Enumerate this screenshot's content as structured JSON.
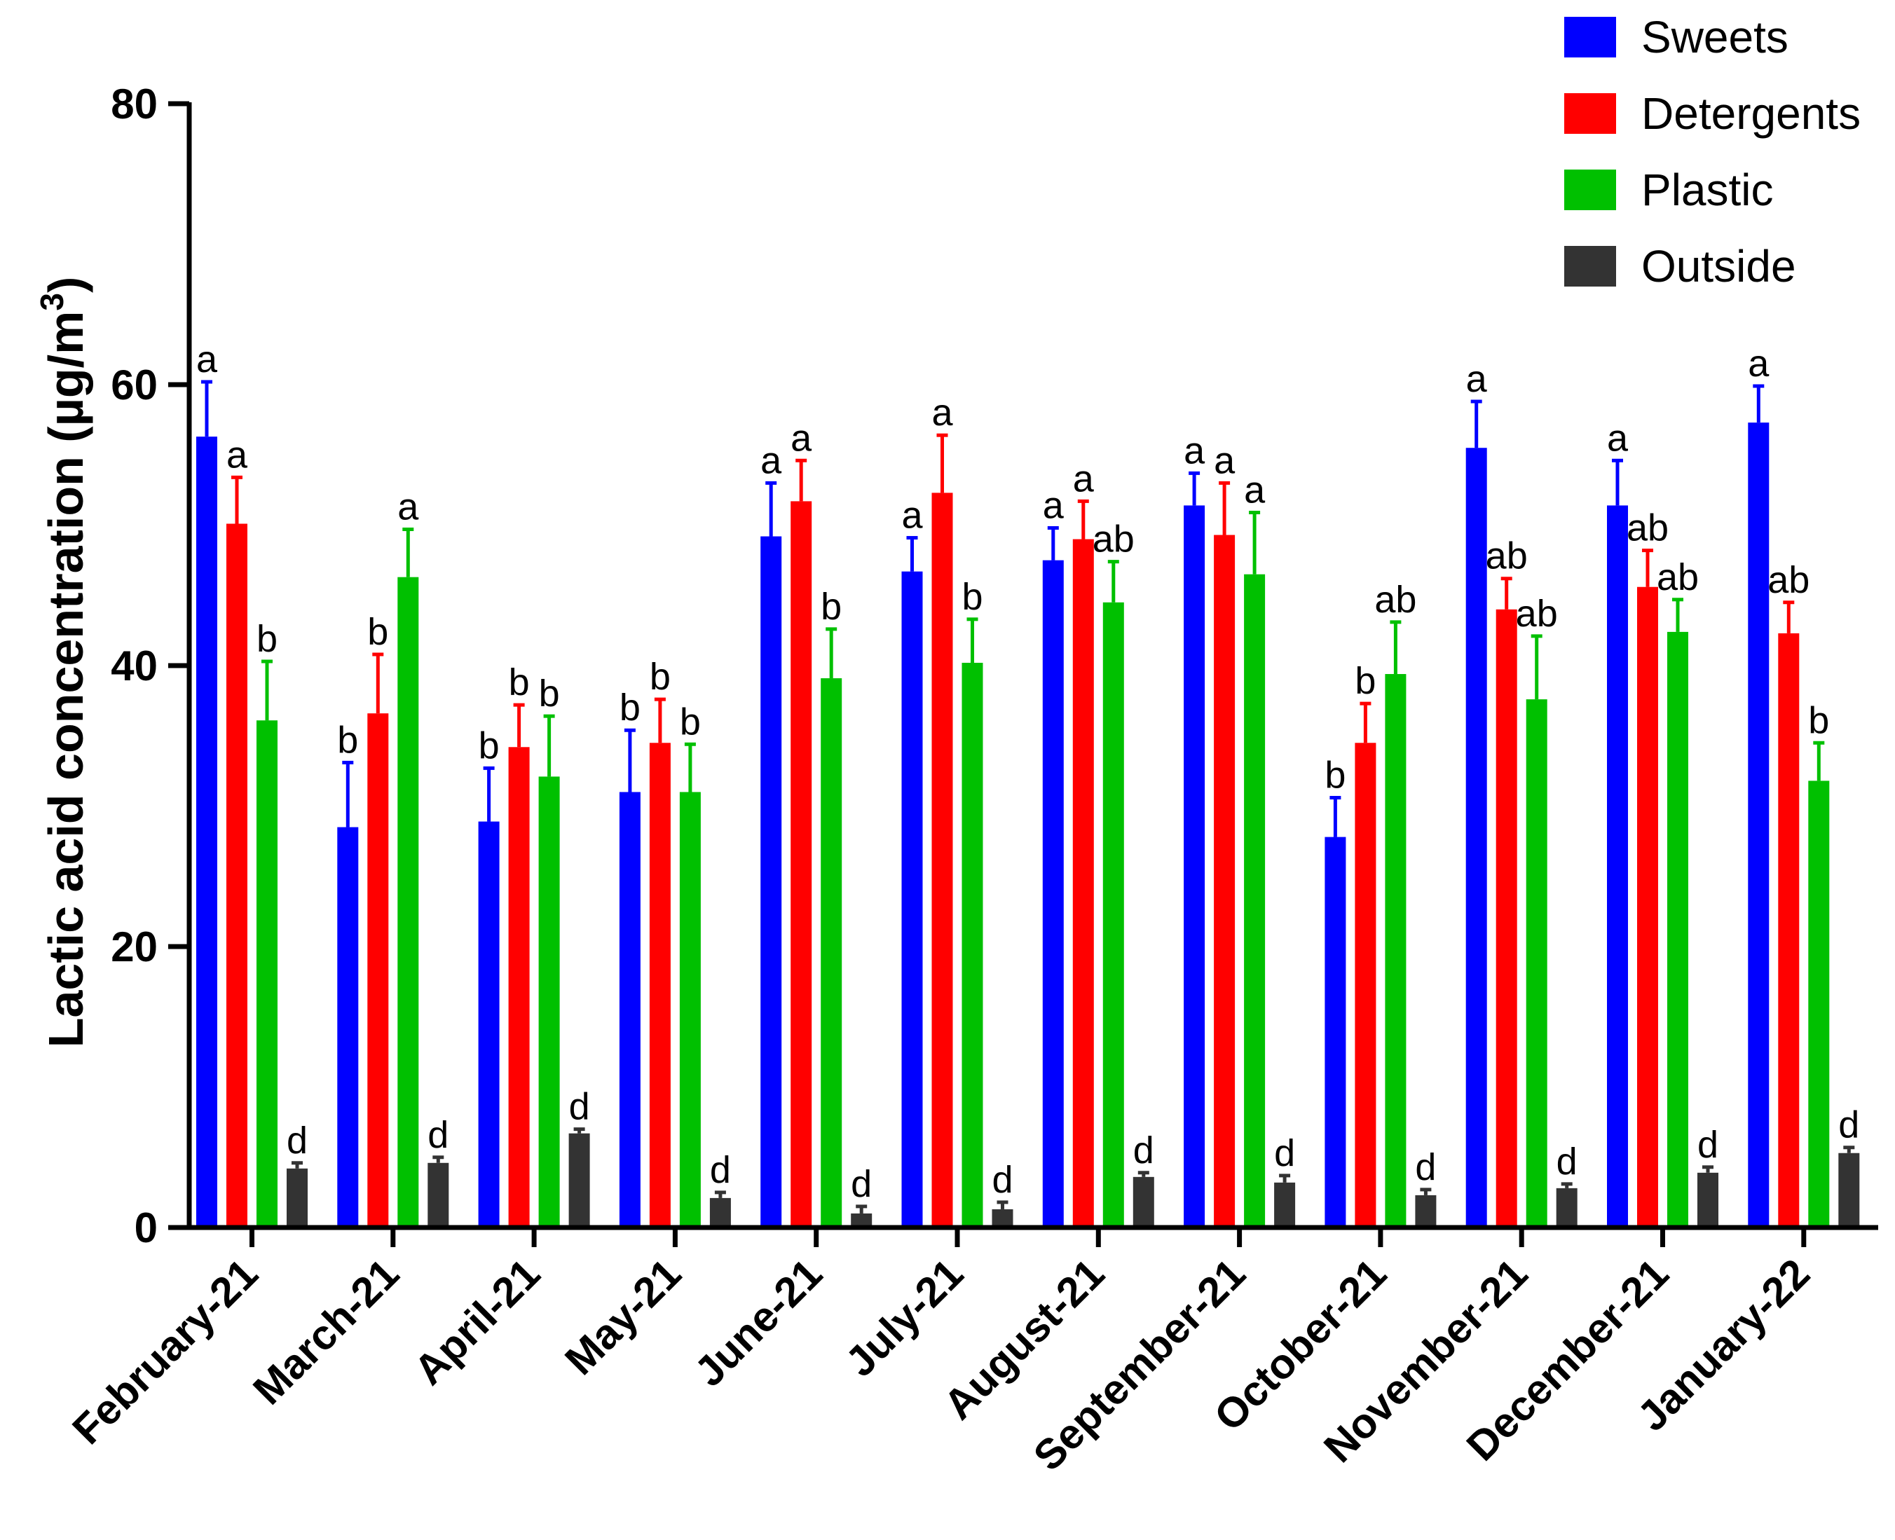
{
  "chart_data": {
    "type": "bar",
    "ylabel": "Lactic acid concentration (µg/m",
    "ylabel_sup": "3",
    "ylabel_close": ")",
    "ylim": [
      0,
      80
    ],
    "yticks": [
      0,
      20,
      40,
      60,
      80
    ],
    "categories": [
      "February-21",
      "March-21",
      "April-21",
      "May-21",
      "June-21",
      "July-21",
      "August-21",
      "September-21",
      "October-21",
      "November-21",
      "December-21",
      "January-22"
    ],
    "series": [
      {
        "name": "Sweets",
        "color": "#0000ff",
        "values": [
          56.3,
          28.5,
          28.9,
          31.0,
          49.2,
          46.7,
          47.5,
          51.4,
          27.8,
          55.5,
          51.4,
          57.3
        ],
        "errors": [
          3.9,
          4.6,
          3.8,
          4.4,
          3.8,
          2.4,
          2.3,
          2.3,
          2.8,
          3.3,
          3.2,
          2.6
        ],
        "letters": [
          "a",
          "b",
          "b",
          "b",
          "a",
          "a",
          "a",
          "a",
          "b",
          "a",
          "a",
          "a"
        ]
      },
      {
        "name": "Detergents",
        "color": "#ff0000",
        "values": [
          50.1,
          36.6,
          34.2,
          34.5,
          51.7,
          52.3,
          49.0,
          49.3,
          34.5,
          44.0,
          45.6,
          42.3
        ],
        "errors": [
          3.3,
          4.2,
          3.0,
          3.1,
          2.9,
          4.1,
          2.7,
          3.7,
          2.8,
          2.2,
          2.6,
          2.2
        ],
        "letters": [
          "a",
          "b",
          "b",
          "b",
          "a",
          "a",
          "a",
          "a",
          "b",
          "ab",
          "ab",
          "ab"
        ]
      },
      {
        "name": "Plastic",
        "color": "#00c000",
        "values": [
          36.1,
          46.3,
          32.1,
          31.0,
          39.1,
          40.2,
          44.5,
          46.5,
          39.4,
          37.6,
          42.4,
          31.8
        ],
        "errors": [
          4.2,
          3.4,
          4.3,
          3.4,
          3.5,
          3.1,
          2.9,
          4.4,
          3.7,
          4.5,
          2.3,
          2.7
        ],
        "letters": [
          "b",
          "a",
          "b",
          "b",
          "b",
          "b",
          "ab",
          "a",
          "ab",
          "ab",
          "ab",
          "b"
        ]
      },
      {
        "name": "Outside",
        "color": "#333333",
        "values": [
          4.2,
          4.6,
          6.7,
          2.1,
          1.0,
          1.3,
          3.6,
          3.2,
          2.3,
          2.8,
          3.9,
          5.3
        ],
        "errors": [
          0.4,
          0.4,
          0.3,
          0.4,
          0.5,
          0.5,
          0.3,
          0.5,
          0.4,
          0.3,
          0.4,
          0.4
        ],
        "letters": [
          "d",
          "d",
          "d",
          "d",
          "d",
          "d",
          "d",
          "d",
          "d",
          "d",
          "d",
          "d"
        ]
      }
    ],
    "legend_position": "top-right"
  }
}
